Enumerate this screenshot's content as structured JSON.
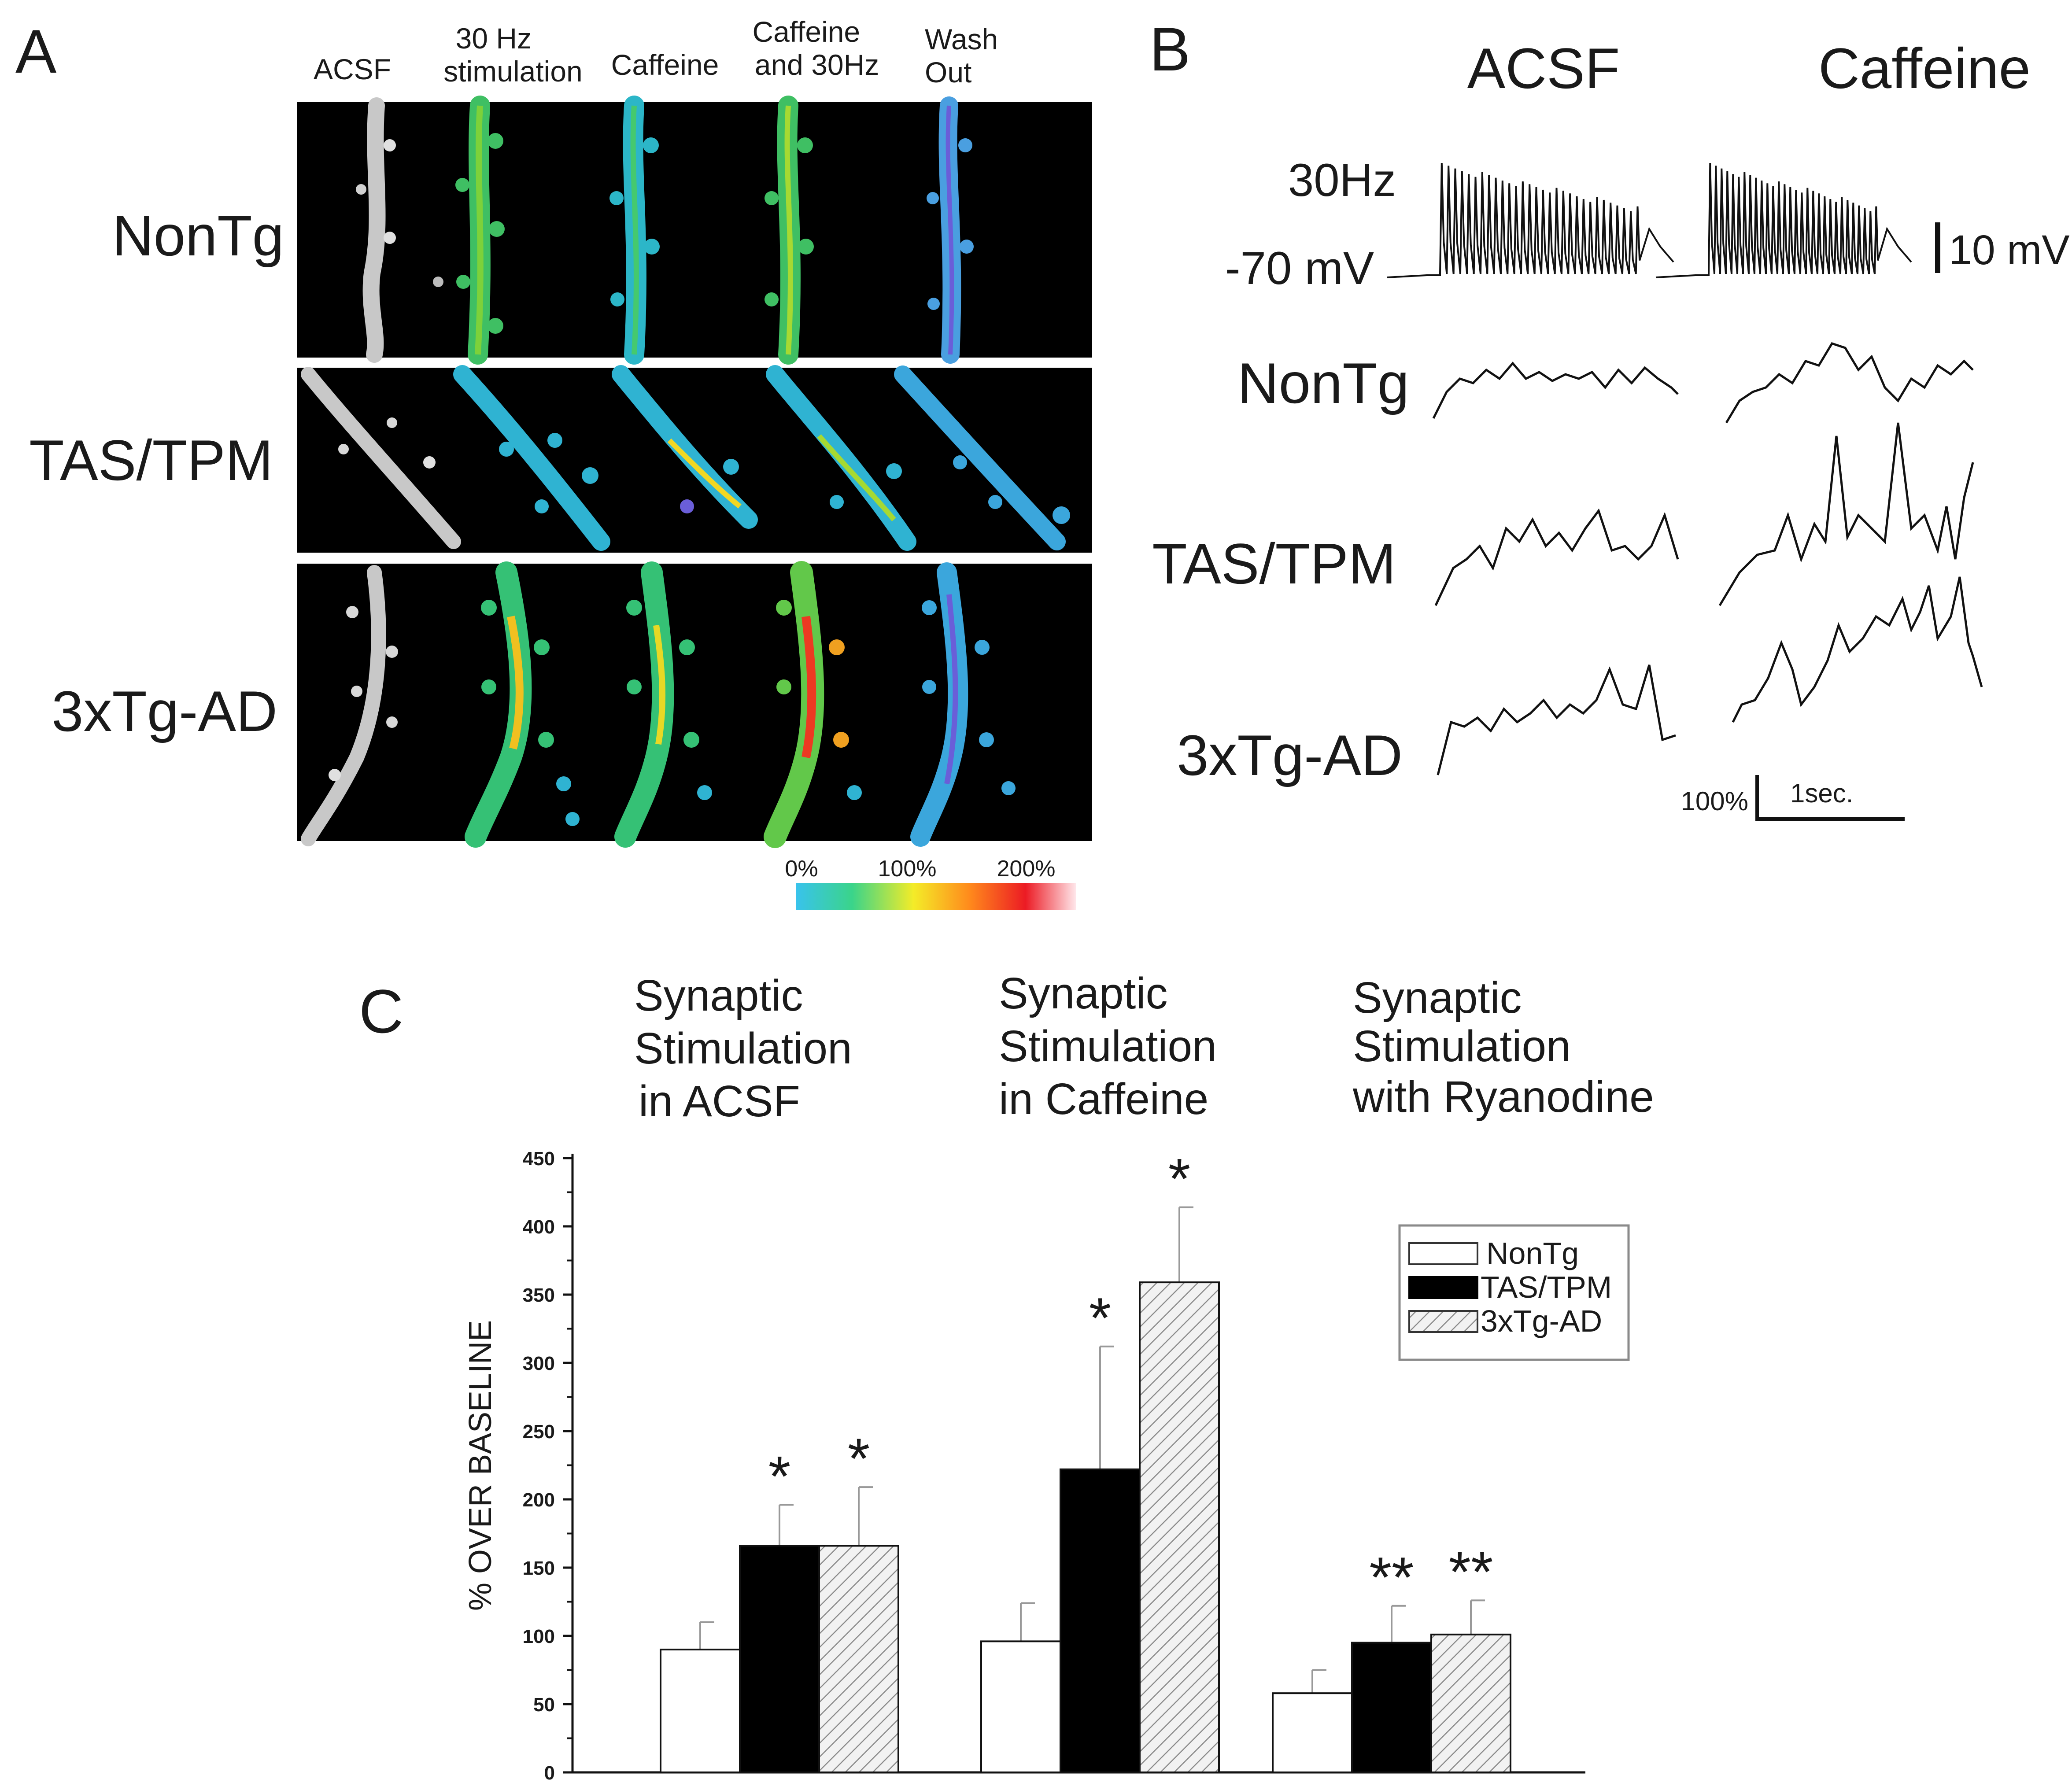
{
  "panel_a": {
    "letter": "A",
    "column_headers": [
      {
        "lines": [
          "ACSF"
        ]
      },
      {
        "lines": [
          "30 Hz",
          "stimulation"
        ]
      },
      {
        "lines": [
          "Caffeine"
        ]
      },
      {
        "lines": [
          "Caffeine",
          "and 30Hz"
        ]
      },
      {
        "lines": [
          "Wash",
          "Out"
        ]
      }
    ],
    "row_labels": [
      "NonTg",
      "TAS/TPM",
      "3xTg-AD"
    ],
    "colorbar": {
      "labels": [
        "0%",
        "100%",
        "200%"
      ]
    }
  },
  "panel_b": {
    "letter": "B",
    "column_titles": [
      "ACSF",
      "Caffeine"
    ],
    "stim_label": "30Hz",
    "vm_label": "-70 mV",
    "voltage_scale": "10 mV",
    "row_labels": [
      "NonTg",
      "TAS/TPM",
      "3xTg-AD"
    ],
    "scale_y": "100%",
    "scale_x": "1sec."
  },
  "panel_c": {
    "letter": "C",
    "group_titles": [
      [
        "Synaptic",
        "Stimulation",
        "in ACSF"
      ],
      [
        "Synaptic",
        "Stimulation",
        "in Caffeine"
      ],
      [
        "Synaptic",
        "Stimulation",
        "with Ryanodine"
      ]
    ]
  },
  "chart_data": {
    "type": "bar",
    "categories": [
      "Synaptic Stimulation in ACSF",
      "Synaptic Stimulation in Caffeine",
      "Synaptic Stimulation with Ryanodine"
    ],
    "series": [
      {
        "name": "NonTg",
        "color": "#ffffff",
        "fill": "open",
        "values": [
          90,
          96,
          58
        ],
        "errors": [
          20,
          28,
          17
        ],
        "significance": [
          "",
          "",
          ""
        ]
      },
      {
        "name": "TAS/TPM",
        "color": "#000000",
        "fill": "solid",
        "values": [
          166,
          222,
          95
        ],
        "errors": [
          30,
          90,
          27
        ],
        "significance": [
          "*",
          "*",
          "**"
        ]
      },
      {
        "name": "3xTg-AD",
        "color": "#e6e6e6",
        "fill": "hatched",
        "values": [
          166,
          359,
          101
        ],
        "errors": [
          43,
          55,
          25
        ],
        "significance": [
          "*",
          "*",
          "**"
        ]
      }
    ],
    "ylabel": "% OVER BASELINE",
    "ylim": [
      0,
      450
    ],
    "yticks": [
      "0",
      "50",
      "100",
      "150",
      "200",
      "250",
      "300",
      "350",
      "400",
      "450"
    ],
    "legend": {
      "position": "top-right",
      "entries": [
        "NonTg",
        "TAS/TPM",
        "3xTg-AD"
      ]
    },
    "grid": false
  }
}
